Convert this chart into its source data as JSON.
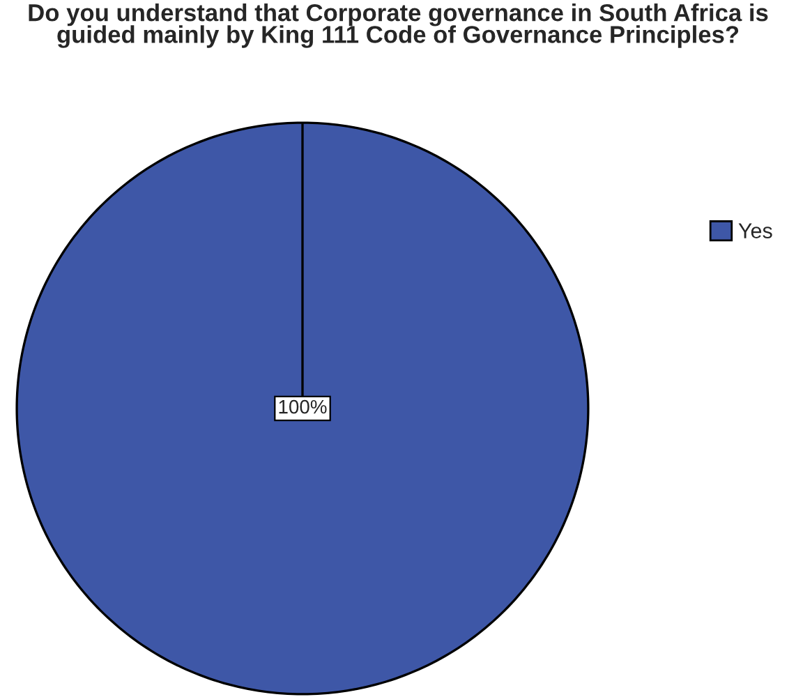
{
  "chart_data": {
    "type": "pie",
    "title": "Do you understand that Corporate governance in South Africa is guided mainly by King 111 Code of Governance Principles?",
    "categories": [
      "Yes"
    ],
    "values": [
      100
    ],
    "colors": [
      "#3e57a7"
    ],
    "value_labels": [
      "100%"
    ],
    "legend": "top right"
  }
}
